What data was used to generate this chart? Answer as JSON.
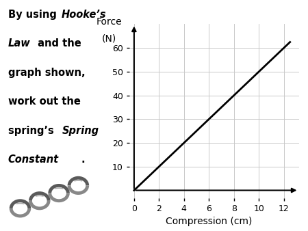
{
  "line_x": [
    0,
    12.5
  ],
  "line_y": [
    0,
    62.5
  ],
  "xlim": [
    -0.5,
    13.2
  ],
  "ylim": [
    -4,
    70
  ],
  "xticks": [
    0,
    2,
    4,
    6,
    8,
    10,
    12
  ],
  "yticks": [
    10,
    20,
    30,
    40,
    50,
    60
  ],
  "xlabel": "Compression (cm)",
  "ylabel_line1": "Force",
  "ylabel_line2": "(N)",
  "line_color": "#000000",
  "line_width": 2.0,
  "grid_color": "#c8c8c8",
  "background_color": "#ffffff",
  "font_size_text": 10.5,
  "font_size_axis_label": 10,
  "font_size_tick": 9
}
